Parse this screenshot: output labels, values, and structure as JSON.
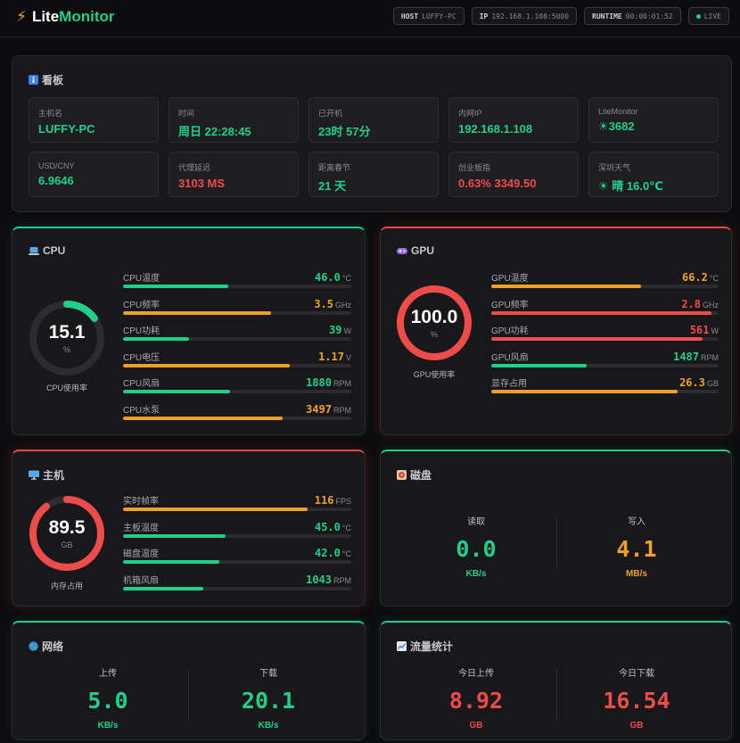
{
  "app": {
    "name_part1": "Lite",
    "name_part2": "Monitor"
  },
  "header": {
    "host_label": "HOST",
    "host_value": "LUFFY-PC",
    "ip_label": "IP",
    "ip_value": "192.168.1.108:5000",
    "runtime_label": "RUNTIME",
    "runtime_value": "00:00:01:52",
    "live_label": "LIVE"
  },
  "dashboard": {
    "title": "看板",
    "cards": [
      {
        "label": "主机名",
        "value": "LUFFY-PC",
        "color": "#1fd08a"
      },
      {
        "label": "时间",
        "value": "周日 22:28:45",
        "color": "#1fd08a"
      },
      {
        "label": "已开机",
        "value": "23时 57分",
        "color": "#1fd08a"
      },
      {
        "label": "内网IP",
        "value": "192.168.1.108",
        "color": "#1fd08a"
      },
      {
        "label": "LiteMonitor",
        "value": "☀3682",
        "color": "#1fd08a"
      },
      {
        "label": "USD/CNY",
        "value": "6.9646",
        "color": "#1fd08a"
      },
      {
        "label": "代理延迟",
        "value": "3103  MS",
        "color": "#ee4b4b"
      },
      {
        "label": "距离春节",
        "value": "21  天",
        "color": "#1fd08a"
      },
      {
        "label": "创业板指",
        "value": "0.63% 3349.50",
        "color": "#ee4b4b"
      },
      {
        "label": "深圳天气",
        "value": "☀ 晴 16.0℃",
        "color": "#1fd08a"
      }
    ]
  },
  "cpu": {
    "title": "CPU",
    "gauge": {
      "value": "15.1",
      "unit": "%",
      "caption": "CPU使用率",
      "level": 0.151,
      "color": "#1fd08a"
    },
    "metrics": [
      {
        "label": "CPU温度",
        "value": "46.0",
        "unit": "°C",
        "level": 0.46,
        "color": "#1fd08a"
      },
      {
        "label": "CPU频率",
        "value": "3.5",
        "unit": "GHz",
        "level": 0.65,
        "color": "#f0a028"
      },
      {
        "label": "CPU功耗",
        "value": "39",
        "unit": "W",
        "level": 0.29,
        "color": "#1fd08a"
      },
      {
        "label": "CPU电压",
        "value": "1.17",
        "unit": "V",
        "level": 0.73,
        "color": "#f0a028"
      },
      {
        "label": "CPU风扇",
        "value": "1880",
        "unit": "RPM",
        "level": 0.47,
        "color": "#1fd08a"
      },
      {
        "label": "CPU水泵",
        "value": "3497",
        "unit": "RPM",
        "level": 0.7,
        "color": "#f0a028"
      }
    ]
  },
  "gpu": {
    "title": "GPU",
    "gauge": {
      "value": "100.0",
      "unit": "%",
      "caption": "GPU使用率",
      "level": 1.0,
      "color": "#ee4b4b"
    },
    "metrics": [
      {
        "label": "GPU温度",
        "value": "66.2",
        "unit": "°C",
        "level": 0.66,
        "color": "#f0a028"
      },
      {
        "label": "GPU频率",
        "value": "2.8",
        "unit": "GHz",
        "level": 0.97,
        "color": "#ee4b4b"
      },
      {
        "label": "GPU功耗",
        "value": "561",
        "unit": "W",
        "level": 0.93,
        "color": "#ee4b4b"
      },
      {
        "label": "GPU风扇",
        "value": "1487",
        "unit": "RPM",
        "level": 0.42,
        "color": "#1fd08a"
      },
      {
        "label": "显存占用",
        "value": "26.3",
        "unit": "GB",
        "level": 0.82,
        "color": "#f0a028"
      }
    ]
  },
  "host": {
    "title": "主机",
    "gauge": {
      "value": "89.5",
      "unit": "GB",
      "caption": "内存占用",
      "level": 0.895,
      "color": "#ee4b4b"
    },
    "metrics": [
      {
        "label": "实时帧率",
        "value": "116",
        "unit": "FPS",
        "level": 0.81,
        "color": "#f0a028"
      },
      {
        "label": "主板温度",
        "value": "45.0",
        "unit": "°C",
        "level": 0.45,
        "color": "#1fd08a"
      },
      {
        "label": "磁盘温度",
        "value": "42.0",
        "unit": "°C",
        "level": 0.42,
        "color": "#1fd08a"
      },
      {
        "label": "机箱风扇",
        "value": "1043",
        "unit": "RPM",
        "level": 0.35,
        "color": "#1fd08a"
      }
    ]
  },
  "disk": {
    "title": "磁盘",
    "read": {
      "label": "读取",
      "value": "0.0",
      "unit": "KB/s",
      "color": "#1fd08a"
    },
    "write": {
      "label": "写入",
      "value": "4.1",
      "unit": "MB/s",
      "color": "#f0a028"
    }
  },
  "network": {
    "title": "网络",
    "up": {
      "label": "上传",
      "value": "5.0",
      "unit": "KB/s",
      "color": "#1fd08a"
    },
    "down": {
      "label": "下载",
      "value": "20.1",
      "unit": "KB/s",
      "color": "#1fd08a"
    }
  },
  "traffic": {
    "title": "流量统计",
    "up": {
      "label": "今日上传",
      "value": "8.92",
      "unit": "GB",
      "color": "#ee4b4b"
    },
    "down": {
      "label": "今日下载",
      "value": "16.54",
      "unit": "GB",
      "color": "#ee4b4b"
    }
  },
  "icons": {
    "bolt": "bolt-icon",
    "info": "info-icon",
    "laptop": "laptop-icon",
    "gamepad": "gamepad-icon",
    "desktop": "desktop-icon",
    "disk": "disk-icon",
    "globe": "globe-icon",
    "chart": "chart-icon"
  }
}
